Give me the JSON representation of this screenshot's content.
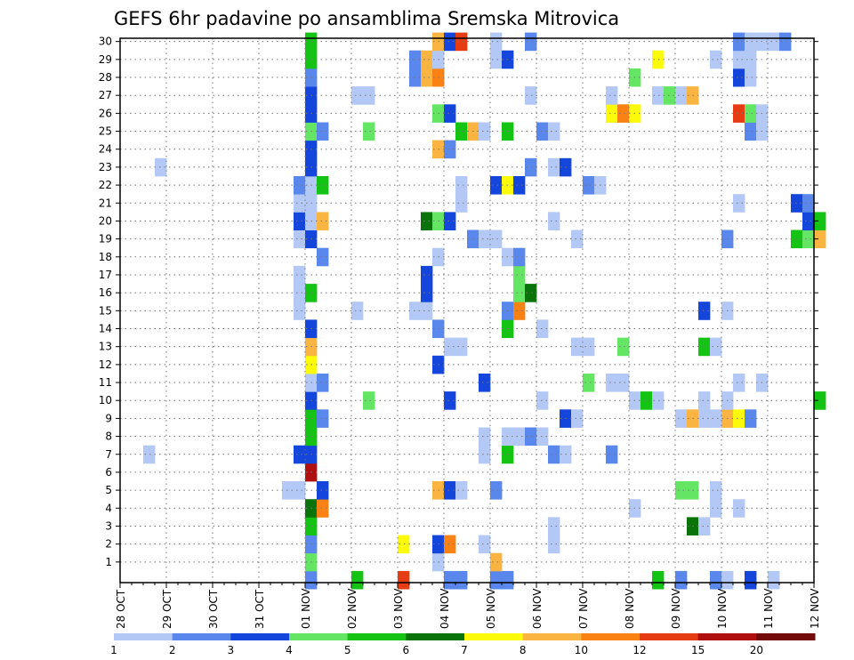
{
  "chart_data": {
    "type": "heatmap",
    "title": "GEFS 6hr padavine po ansamblima Sremska Mitrovica",
    "x_tick_labels": [
      "28 OCT",
      "29 OCT",
      "30 OCT",
      "31 OCT",
      "01 NOV",
      "02 NOV",
      "03 NOV",
      "04 NOV",
      "05 NOV",
      "06 NOV",
      "07 NOV",
      "08 NOV",
      "09 NOV",
      "10 NOV",
      "11 NOV",
      "12 NOV"
    ],
    "y_tick_labels": [
      "1",
      "2",
      "3",
      "4",
      "5",
      "6",
      "7",
      "8",
      "9",
      "10",
      "11",
      "12",
      "13",
      "14",
      "15",
      "16",
      "17",
      "18",
      "19",
      "20",
      "21",
      "22",
      "23",
      "24",
      "25",
      "26",
      "27",
      "28",
      "29",
      "30"
    ],
    "ylim": [
      0,
      30
    ],
    "time_step_hours": 6,
    "grid": "dotted",
    "legend": {
      "position": "bottom",
      "bins": [
        {
          "lower": "1",
          "color": "#b4c8f5"
        },
        {
          "lower": "2",
          "color": "#5a87eb"
        },
        {
          "lower": "3",
          "color": "#1446dc"
        },
        {
          "lower": "4",
          "color": "#64e664"
        },
        {
          "lower": "5",
          "color": "#14c314"
        },
        {
          "lower": "6",
          "color": "#0a730a"
        },
        {
          "lower": "7",
          "color": "#fafa0a"
        },
        {
          "lower": "8",
          "color": "#fab441"
        },
        {
          "lower": "10",
          "color": "#fa8214"
        },
        {
          "lower": "12",
          "color": "#e63c14"
        },
        {
          "lower": "15",
          "color": "#af0f0f"
        },
        {
          "lower": "20",
          "color": "#730a0a"
        }
      ]
    },
    "cells_note": "value bin index 1-12 per (time step, ensemble member); x = 6h step from 28 OCT 00Z",
    "cells": [
      [
        16,
        0,
        2
      ],
      [
        20,
        0,
        5
      ],
      [
        24,
        0,
        10
      ],
      [
        28,
        0,
        2
      ],
      [
        29,
        0,
        2
      ],
      [
        32,
        0,
        2
      ],
      [
        33,
        0,
        2
      ],
      [
        46,
        0,
        5
      ],
      [
        48,
        0,
        2
      ],
      [
        51,
        0,
        2
      ],
      [
        52,
        0,
        1
      ],
      [
        54,
        0,
        3
      ],
      [
        56,
        0,
        1
      ],
      [
        16,
        1,
        4
      ],
      [
        27,
        1,
        1
      ],
      [
        32,
        1,
        8
      ],
      [
        16,
        2,
        2
      ],
      [
        24,
        2,
        7
      ],
      [
        27,
        2,
        3
      ],
      [
        28,
        2,
        9
      ],
      [
        31,
        2,
        1
      ],
      [
        37,
        2,
        1
      ],
      [
        16,
        3,
        5
      ],
      [
        37,
        3,
        1
      ],
      [
        49,
        3,
        6
      ],
      [
        50,
        3,
        1
      ],
      [
        16,
        4,
        6
      ],
      [
        17,
        4,
        9
      ],
      [
        44,
        4,
        1
      ],
      [
        51,
        4,
        1
      ],
      [
        53,
        4,
        1
      ],
      [
        14,
        5,
        1
      ],
      [
        15,
        5,
        1
      ],
      [
        17,
        5,
        3
      ],
      [
        27,
        5,
        8
      ],
      [
        28,
        5,
        3
      ],
      [
        29,
        5,
        1
      ],
      [
        32,
        5,
        2
      ],
      [
        48,
        5,
        4
      ],
      [
        49,
        5,
        4
      ],
      [
        51,
        5,
        1
      ],
      [
        16,
        6,
        11
      ],
      [
        2,
        7,
        1
      ],
      [
        15,
        7,
        3
      ],
      [
        16,
        7,
        3
      ],
      [
        31,
        7,
        1
      ],
      [
        33,
        7,
        5
      ],
      [
        37,
        7,
        2
      ],
      [
        38,
        7,
        1
      ],
      [
        42,
        7,
        2
      ],
      [
        16,
        8,
        5
      ],
      [
        31,
        8,
        1
      ],
      [
        33,
        8,
        1
      ],
      [
        34,
        8,
        1
      ],
      [
        35,
        8,
        2
      ],
      [
        36,
        8,
        1
      ],
      [
        16,
        9,
        5
      ],
      [
        17,
        9,
        2
      ],
      [
        38,
        9,
        3
      ],
      [
        39,
        9,
        1
      ],
      [
        48,
        9,
        1
      ],
      [
        49,
        9,
        8
      ],
      [
        50,
        9,
        1
      ],
      [
        51,
        9,
        1
      ],
      [
        52,
        9,
        8
      ],
      [
        53,
        9,
        7
      ],
      [
        54,
        9,
        2
      ],
      [
        16,
        10,
        3
      ],
      [
        21,
        10,
        4
      ],
      [
        28,
        10,
        3
      ],
      [
        36,
        10,
        1
      ],
      [
        44,
        10,
        1
      ],
      [
        45,
        10,
        5
      ],
      [
        46,
        10,
        1
      ],
      [
        50,
        10,
        1
      ],
      [
        52,
        10,
        1
      ],
      [
        60,
        10,
        5
      ],
      [
        16,
        11,
        1
      ],
      [
        17,
        11,
        2
      ],
      [
        31,
        11,
        3
      ],
      [
        40,
        11,
        4
      ],
      [
        42,
        11,
        1
      ],
      [
        43,
        11,
        1
      ],
      [
        53,
        11,
        1
      ],
      [
        55,
        11,
        1
      ],
      [
        16,
        12,
        7
      ],
      [
        27,
        12,
        3
      ],
      [
        16,
        13,
        8
      ],
      [
        28,
        13,
        1
      ],
      [
        29,
        13,
        1
      ],
      [
        39,
        13,
        1
      ],
      [
        40,
        13,
        1
      ],
      [
        43,
        13,
        4
      ],
      [
        50,
        13,
        5
      ],
      [
        51,
        13,
        1
      ],
      [
        16,
        14,
        3
      ],
      [
        27,
        14,
        2
      ],
      [
        33,
        14,
        5
      ],
      [
        36,
        14,
        1
      ],
      [
        15,
        15,
        1
      ],
      [
        20,
        15,
        1
      ],
      [
        25,
        15,
        1
      ],
      [
        26,
        15,
        1
      ],
      [
        33,
        15,
        2
      ],
      [
        34,
        15,
        9
      ],
      [
        50,
        15,
        3
      ],
      [
        52,
        15,
        1
      ],
      [
        15,
        16,
        1
      ],
      [
        16,
        16,
        5
      ],
      [
        26,
        16,
        3
      ],
      [
        34,
        16,
        4
      ],
      [
        35,
        16,
        6
      ],
      [
        15,
        17,
        1
      ],
      [
        26,
        17,
        3
      ],
      [
        34,
        17,
        4
      ],
      [
        17,
        18,
        2
      ],
      [
        27,
        18,
        1
      ],
      [
        33,
        18,
        1
      ],
      [
        34,
        18,
        2
      ],
      [
        15,
        19,
        1
      ],
      [
        16,
        19,
        3
      ],
      [
        30,
        19,
        2
      ],
      [
        31,
        19,
        1
      ],
      [
        32,
        19,
        1
      ],
      [
        39,
        19,
        1
      ],
      [
        52,
        19,
        2
      ],
      [
        58,
        19,
        5
      ],
      [
        59,
        19,
        4
      ],
      [
        60,
        19,
        8
      ],
      [
        15,
        20,
        3
      ],
      [
        16,
        20,
        1
      ],
      [
        17,
        20,
        8
      ],
      [
        26,
        20,
        6
      ],
      [
        27,
        20,
        4
      ],
      [
        28,
        20,
        3
      ],
      [
        37,
        20,
        1
      ],
      [
        59,
        20,
        3
      ],
      [
        60,
        20,
        5
      ],
      [
        15,
        21,
        1
      ],
      [
        16,
        21,
        1
      ],
      [
        29,
        21,
        1
      ],
      [
        53,
        21,
        1
      ],
      [
        58,
        21,
        3
      ],
      [
        59,
        21,
        2
      ],
      [
        15,
        22,
        2
      ],
      [
        16,
        22,
        1
      ],
      [
        17,
        22,
        5
      ],
      [
        29,
        22,
        1
      ],
      [
        32,
        22,
        3
      ],
      [
        33,
        22,
        7
      ],
      [
        34,
        22,
        3
      ],
      [
        40,
        22,
        2
      ],
      [
        41,
        22,
        1
      ],
      [
        3,
        23,
        1
      ],
      [
        16,
        23,
        3
      ],
      [
        35,
        23,
        2
      ],
      [
        37,
        23,
        1
      ],
      [
        38,
        23,
        3
      ],
      [
        16,
        24,
        3
      ],
      [
        27,
        24,
        8
      ],
      [
        28,
        24,
        2
      ],
      [
        16,
        25,
        4
      ],
      [
        17,
        25,
        2
      ],
      [
        21,
        25,
        4
      ],
      [
        29,
        25,
        5
      ],
      [
        30,
        25,
        8
      ],
      [
        31,
        25,
        1
      ],
      [
        33,
        25,
        5
      ],
      [
        36,
        25,
        2
      ],
      [
        37,
        25,
        1
      ],
      [
        54,
        25,
        2
      ],
      [
        55,
        25,
        1
      ],
      [
        16,
        26,
        3
      ],
      [
        27,
        26,
        4
      ],
      [
        28,
        26,
        3
      ],
      [
        42,
        26,
        7
      ],
      [
        43,
        26,
        9
      ],
      [
        44,
        26,
        7
      ],
      [
        53,
        26,
        10
      ],
      [
        54,
        26,
        4
      ],
      [
        55,
        26,
        1
      ],
      [
        16,
        27,
        3
      ],
      [
        20,
        27,
        1
      ],
      [
        21,
        27,
        1
      ],
      [
        35,
        27,
        1
      ],
      [
        42,
        27,
        1
      ],
      [
        46,
        27,
        1
      ],
      [
        47,
        27,
        4
      ],
      [
        48,
        27,
        1
      ],
      [
        49,
        27,
        8
      ],
      [
        16,
        28,
        2
      ],
      [
        25,
        28,
        2
      ],
      [
        26,
        28,
        8
      ],
      [
        27,
        28,
        9
      ],
      [
        44,
        28,
        4
      ],
      [
        53,
        28,
        3
      ],
      [
        54,
        28,
        1
      ],
      [
        16,
        29,
        5
      ],
      [
        25,
        29,
        2
      ],
      [
        26,
        29,
        8
      ],
      [
        27,
        29,
        1
      ],
      [
        32,
        29,
        1
      ],
      [
        33,
        29,
        3
      ],
      [
        46,
        29,
        7
      ],
      [
        51,
        29,
        1
      ],
      [
        53,
        29,
        1
      ],
      [
        54,
        29,
        1
      ],
      [
        16,
        30,
        5
      ],
      [
        27,
        30,
        8
      ],
      [
        28,
        30,
        3
      ],
      [
        29,
        30,
        10
      ],
      [
        32,
        30,
        1
      ],
      [
        35,
        30,
        2
      ],
      [
        53,
        30,
        2
      ],
      [
        54,
        30,
        1
      ],
      [
        55,
        30,
        1
      ],
      [
        56,
        30,
        1
      ],
      [
        57,
        30,
        2
      ]
    ]
  }
}
